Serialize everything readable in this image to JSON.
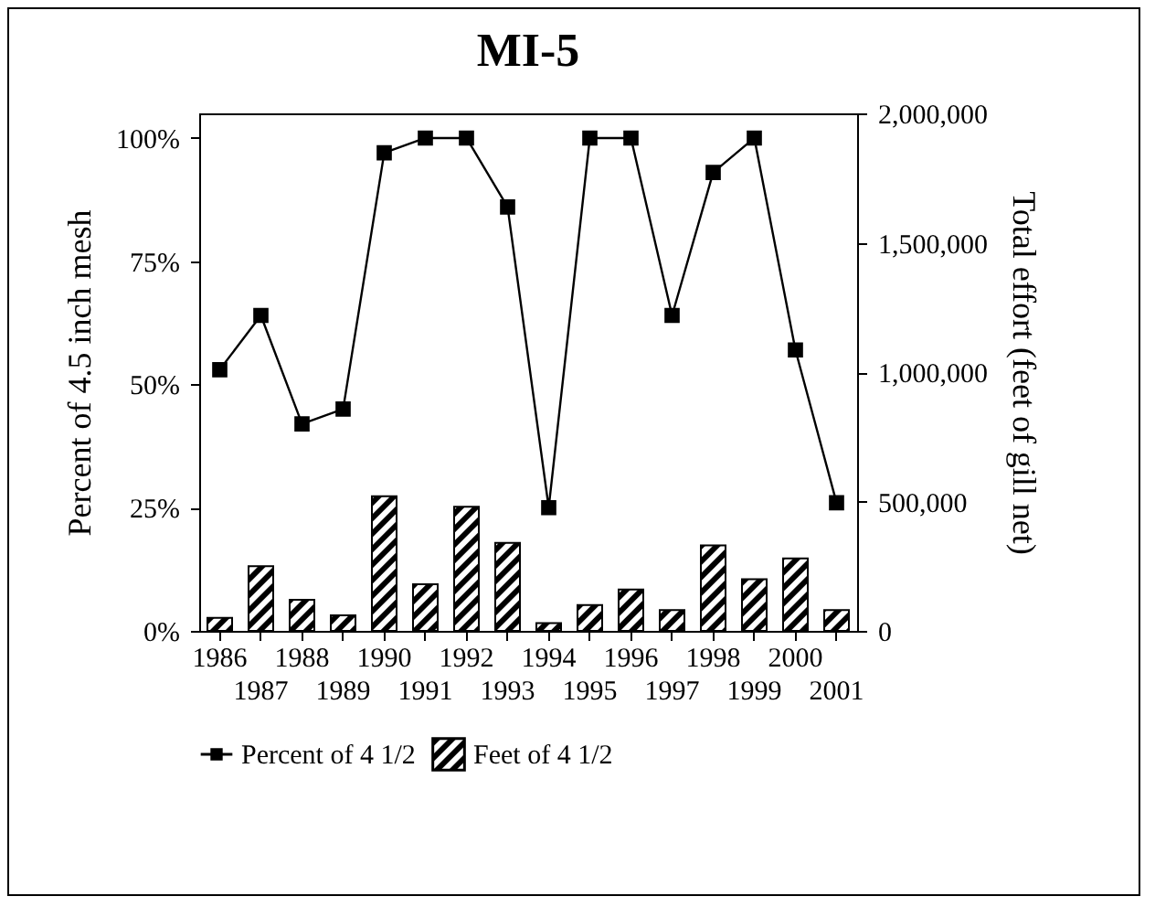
{
  "chart_data": {
    "type": "line",
    "title": "MI-5",
    "ylabel": "Percent of 4.5 inch mesh",
    "y2label": "Total effort (feet of gill net)",
    "categories": [
      "1986",
      "1987",
      "1988",
      "1989",
      "1990",
      "1991",
      "1992",
      "1993",
      "1994",
      "1995",
      "1996",
      "1997",
      "1998",
      "1999",
      "2000",
      "2001"
    ],
    "series": [
      {
        "name": "Percent of 4 1/2",
        "color": "#000000",
        "values": [
          53,
          64,
          42,
          45,
          97,
          100,
          100,
          86,
          25,
          100,
          100,
          64,
          93,
          100,
          57,
          26
        ]
      },
      {
        "name": "Feet of 4 1/2",
        "type": "bar",
        "axis": "y2",
        "color": "#000000",
        "values": [
          50000,
          250000,
          120000,
          60000,
          520000,
          180000,
          480000,
          340000,
          30000,
          100000,
          160000,
          80000,
          330000,
          200000,
          280000,
          80000
        ]
      }
    ],
    "ylim": [
      0,
      105
    ],
    "yticks": [
      {
        "value": 0,
        "label": "0%"
      },
      {
        "value": 25,
        "label": "25%"
      },
      {
        "value": 50,
        "label": "50%"
      },
      {
        "value": 75,
        "label": "75%"
      },
      {
        "value": 100,
        "label": "100%"
      }
    ],
    "y2lim": [
      0,
      2000000
    ],
    "y2ticks": [
      0,
      {
        "value": 500000,
        "label": "500,000"
      },
      {
        "value": 1000000,
        "label": "1,000,000"
      },
      {
        "value": 1500000,
        "label": "1,500,000"
      },
      {
        "value": 2000000,
        "label": "2,000,000"
      }
    ],
    "legend": "bottom",
    "marker": "square",
    "line_style": "solid"
  }
}
